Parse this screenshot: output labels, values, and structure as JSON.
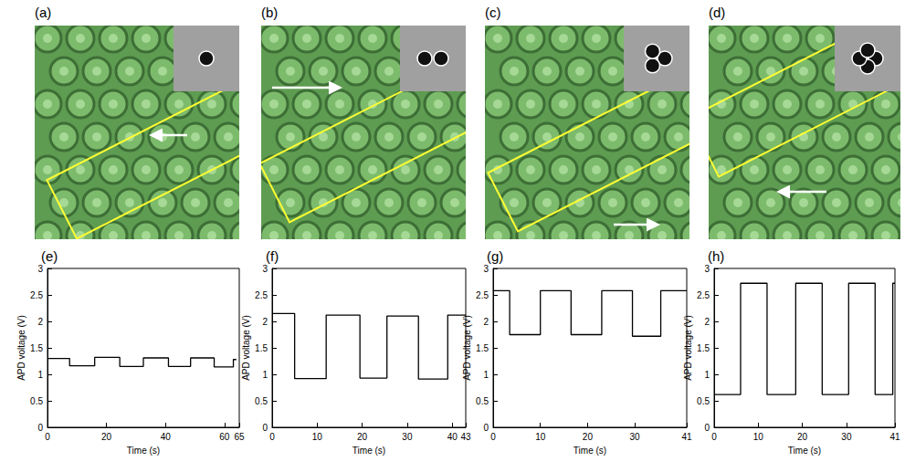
{
  "images": [
    {
      "label": "(a)"
    },
    {
      "label": "(b)"
    },
    {
      "label": "(c)"
    },
    {
      "label": "(d)"
    }
  ],
  "chart_data": [
    {
      "label": "(e)",
      "type": "line",
      "x_label": "Time (s)",
      "y_label": "APD voltage (V)",
      "color": "#000000",
      "xlim": [
        0,
        65
      ],
      "xticks": [
        0,
        20,
        40,
        60
      ],
      "ylim": [
        0,
        3
      ],
      "yticks": [
        0,
        0.5,
        1,
        1.5,
        2,
        2.5,
        3
      ],
      "x": [
        0,
        7.5,
        7.5,
        16,
        16,
        24.5,
        24.5,
        32.5,
        32.5,
        41,
        41,
        48.5,
        48.5,
        56.5,
        56.5,
        63,
        63,
        64
      ],
      "values": [
        1.3,
        1.3,
        1.16,
        1.16,
        1.32,
        1.32,
        1.15,
        1.15,
        1.31,
        1.31,
        1.15,
        1.15,
        1.31,
        1.31,
        1.14,
        1.14,
        1.28,
        1.28
      ]
    },
    {
      "label": "(f)",
      "type": "line",
      "x_label": "Time (s)",
      "y_label": "APD voltage (V)",
      "color": "#000000",
      "xlim": [
        0,
        43
      ],
      "xticks": [
        0,
        10,
        20,
        30,
        40
      ],
      "ylim": [
        0,
        3
      ],
      "yticks": [
        0,
        0.5,
        1,
        1.5,
        2,
        2.5,
        3
      ],
      "x": [
        0,
        5,
        5,
        12,
        12,
        19.5,
        19.5,
        25.5,
        25.5,
        32.5,
        32.5,
        39,
        39,
        43
      ],
      "values": [
        2.15,
        2.15,
        0.92,
        0.92,
        2.12,
        2.12,
        0.93,
        0.93,
        2.1,
        2.1,
        0.91,
        0.91,
        2.12,
        2.12
      ]
    },
    {
      "label": "(g)",
      "type": "line",
      "x_label": "Time (s)",
      "y_label": "APD voltage (V)",
      "color": "#000000",
      "xlim": [
        0,
        41
      ],
      "xticks": [
        0,
        10,
        20,
        30,
        40
      ],
      "ylim": [
        0,
        3
      ],
      "yticks": [
        0,
        0.5,
        1,
        1.5,
        2,
        2.5,
        3
      ],
      "x": [
        0,
        3.5,
        3.5,
        10,
        10,
        16.5,
        16.5,
        23,
        23,
        29.5,
        29.5,
        35.5,
        35.5,
        41
      ],
      "values": [
        2.58,
        2.58,
        1.75,
        1.75,
        2.58,
        2.58,
        1.75,
        1.75,
        2.58,
        2.58,
        1.72,
        1.72,
        2.58,
        2.58
      ]
    },
    {
      "label": "(h)",
      "type": "line",
      "x_label": "Time (s)",
      "y_label": "APD voltage (V)",
      "color": "#000000",
      "xlim": [
        0,
        41
      ],
      "xticks": [
        0,
        10,
        20,
        30,
        40
      ],
      "ylim": [
        0,
        3
      ],
      "yticks": [
        0,
        0.5,
        1,
        1.5,
        2,
        2.5,
        3
      ],
      "x": [
        0,
        6,
        6,
        12,
        12,
        18.5,
        18.5,
        24.5,
        24.5,
        30.5,
        30.5,
        36.5,
        36.5,
        40.5,
        40.5,
        41
      ],
      "values": [
        0.62,
        0.62,
        2.72,
        2.72,
        0.62,
        0.62,
        2.72,
        2.72,
        0.62,
        0.62,
        2.72,
        2.72,
        0.62,
        0.62,
        2.72,
        2.72
      ]
    }
  ]
}
